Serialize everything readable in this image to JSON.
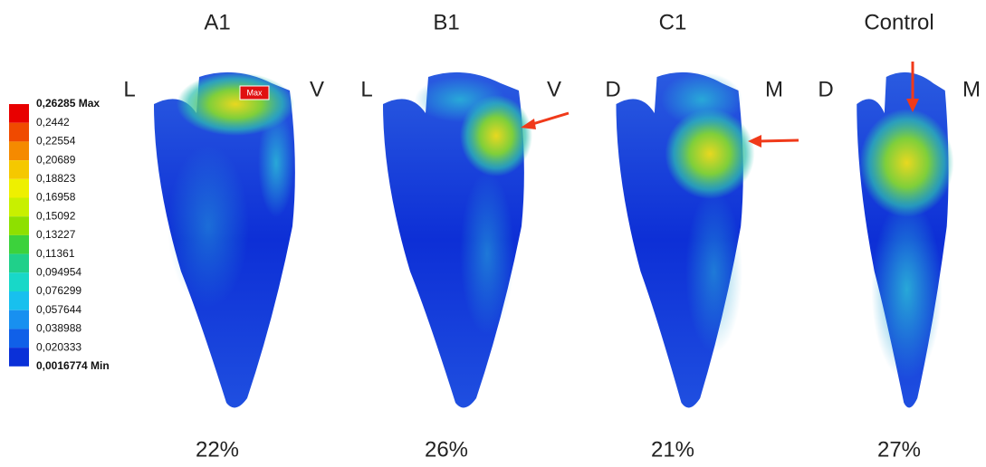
{
  "legend": {
    "labels": [
      "0,26285 Max",
      "0,2442",
      "0,22554",
      "0,20689",
      "0,18823",
      "0,16958",
      "0,15092",
      "0,13227",
      "0,11361",
      "0,094954",
      "0,076299",
      "0,057644",
      "0,038988",
      "0,020333",
      "0,0016774 Min"
    ]
  },
  "max_marker": "Max",
  "panels": [
    {
      "title": "A1",
      "left": "L",
      "right": "V",
      "percent": "22%"
    },
    {
      "title": "B1",
      "left": "L",
      "right": "V",
      "percent": "26%"
    },
    {
      "title": "C1",
      "left": "D",
      "right": "M",
      "percent": "21%"
    },
    {
      "title": "Control",
      "left": "D",
      "right": "M",
      "percent": "27%"
    }
  ]
}
